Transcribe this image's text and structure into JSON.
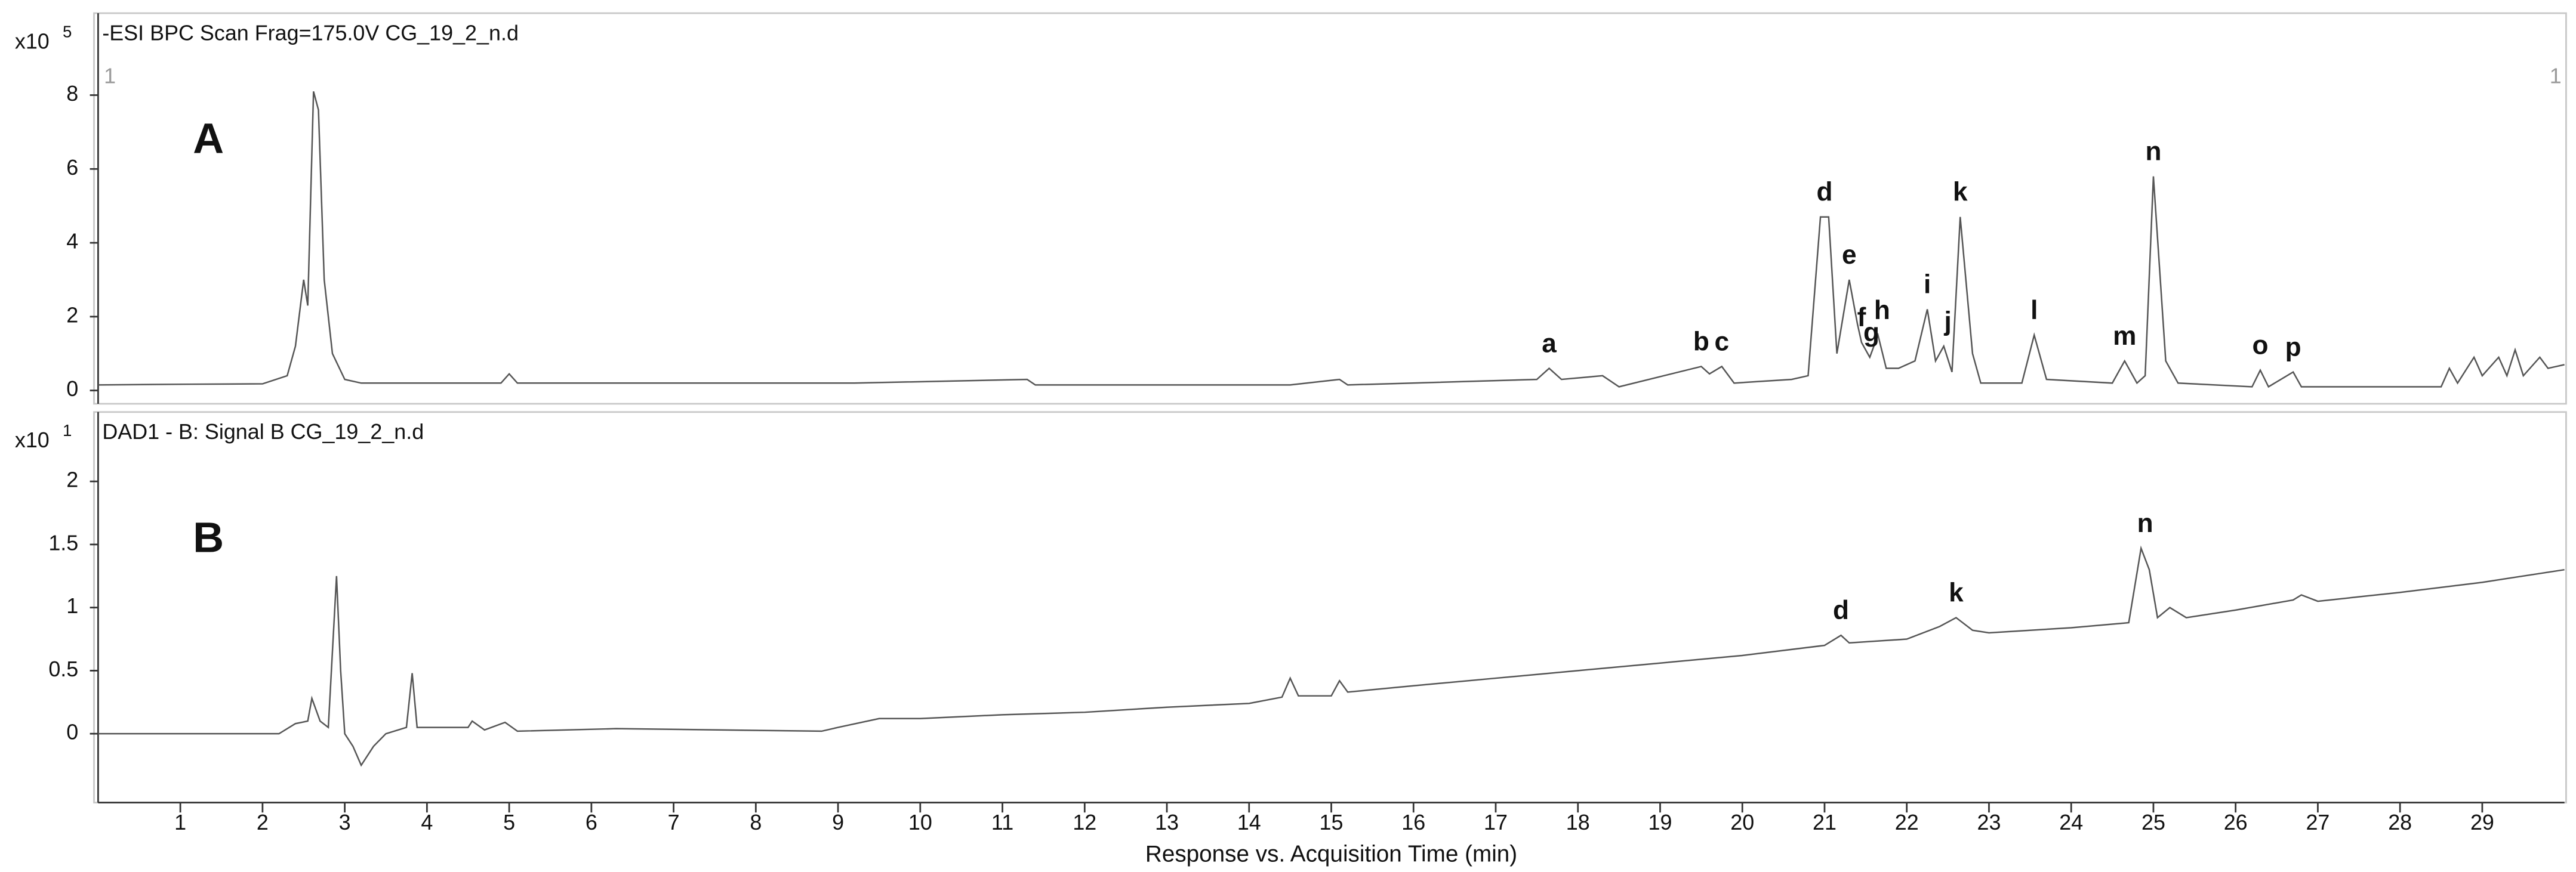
{
  "chart_data": [
    {
      "type": "line",
      "panel_letter": "A",
      "header": "-ESI BPC Scan Frag=175.0V CG_19_2_n.d",
      "y_multiplier": {
        "base": "x10",
        "exponent": "5"
      },
      "cursor_labels": [
        "1",
        "1"
      ],
      "xlim": [
        0,
        30
      ],
      "ylim": [
        -0.36,
        10.13
      ],
      "yticks": [
        0,
        2,
        4,
        6,
        8
      ],
      "color": "#555555",
      "x": [
        0,
        1.1,
        2.0,
        2.3,
        2.4,
        2.5,
        2.55,
        2.62,
        2.68,
        2.75,
        2.85,
        3.0,
        3.2,
        4.9,
        5.0,
        5.1,
        9.2,
        11.3,
        11.4,
        14.5,
        15.1,
        15.2,
        17.5,
        17.65,
        17.8,
        18.3,
        18.5,
        19.5,
        19.6,
        19.75,
        19.9,
        20.6,
        20.8,
        20.95,
        21.05,
        21.15,
        21.3,
        21.4,
        21.45,
        21.55,
        21.65,
        21.75,
        21.9,
        22.1,
        22.25,
        22.35,
        22.45,
        22.55,
        22.65,
        22.8,
        22.9,
        23.4,
        23.55,
        23.7,
        24.5,
        24.65,
        24.8,
        24.9,
        25.0,
        25.15,
        25.3,
        26.2,
        26.3,
        26.4,
        26.7,
        26.8,
        28.5,
        28.6,
        28.7,
        28.9,
        29.0,
        29.2,
        29.3,
        29.4,
        29.5,
        29.7,
        29.8,
        30.0
      ],
      "values": [
        0.15,
        0.17,
        0.18,
        0.4,
        1.2,
        3.0,
        2.3,
        8.1,
        7.6,
        3.0,
        1.0,
        0.3,
        0.2,
        0.2,
        0.45,
        0.2,
        0.2,
        0.3,
        0.15,
        0.15,
        0.3,
        0.15,
        0.3,
        0.6,
        0.3,
        0.4,
        0.1,
        0.65,
        0.45,
        0.65,
        0.2,
        0.3,
        0.4,
        4.7,
        4.7,
        1.0,
        3.0,
        1.8,
        1.3,
        0.9,
        1.5,
        0.6,
        0.6,
        0.8,
        2.2,
        0.8,
        1.2,
        0.5,
        4.7,
        1.0,
        0.2,
        0.2,
        1.5,
        0.3,
        0.2,
        0.8,
        0.2,
        0.4,
        5.8,
        0.8,
        0.2,
        0.1,
        0.55,
        0.1,
        0.5,
        0.1,
        0.1,
        0.6,
        0.2,
        0.9,
        0.4,
        0.9,
        0.4,
        1.1,
        0.4,
        0.9,
        0.6,
        0.7
      ],
      "annotations": [
        {
          "text": "a",
          "x": 17.65,
          "y": 0.6
        },
        {
          "text": "b",
          "x": 19.5,
          "y": 0.65
        },
        {
          "text": "c",
          "x": 19.75,
          "y": 0.65
        },
        {
          "text": "d",
          "x": 21.0,
          "y": 4.7
        },
        {
          "text": "e",
          "x": 21.3,
          "y": 3.0
        },
        {
          "text": "f",
          "x": 21.45,
          "y": 1.3
        },
        {
          "text": "g",
          "x": 21.57,
          "y": 0.9
        },
        {
          "text": "h",
          "x": 21.7,
          "y": 1.5
        },
        {
          "text": "i",
          "x": 22.25,
          "y": 2.2
        },
        {
          "text": "j",
          "x": 22.5,
          "y": 1.2
        },
        {
          "text": "k",
          "x": 22.65,
          "y": 4.7
        },
        {
          "text": "l",
          "x": 23.55,
          "y": 1.5
        },
        {
          "text": "m",
          "x": 24.65,
          "y": 0.8
        },
        {
          "text": "n",
          "x": 25.0,
          "y": 5.8
        },
        {
          "text": "o",
          "x": 26.3,
          "y": 0.55
        },
        {
          "text": "p",
          "x": 26.7,
          "y": 0.5
        }
      ]
    },
    {
      "type": "line",
      "panel_letter": "B",
      "header": "DAD1 - B: Signal B CG_19_2_n.d",
      "y_multiplier": {
        "base": "x10",
        "exponent": "1"
      },
      "xlim": [
        0,
        30
      ],
      "xticks": [
        1,
        2,
        3,
        4,
        5,
        6,
        7,
        8,
        9,
        10,
        11,
        12,
        13,
        14,
        15,
        16,
        17,
        18,
        19,
        20,
        21,
        22,
        23,
        24,
        25,
        26,
        27,
        28,
        29
      ],
      "xlabel": "Response vs. Acquisition Time (min)",
      "ylim": [
        -0.52,
        2.55
      ],
      "yticks": [
        0,
        0.5,
        1,
        1.5,
        2
      ],
      "color": "#555555",
      "x": [
        0,
        2.2,
        2.4,
        2.55,
        2.6,
        2.7,
        2.8,
        2.9,
        2.95,
        3.0,
        3.1,
        3.2,
        3.35,
        3.5,
        3.75,
        3.82,
        3.88,
        4.5,
        4.55,
        4.7,
        4.95,
        5.1,
        6.3,
        8.8,
        9.0,
        9.5,
        10,
        11,
        12,
        13,
        14,
        14.4,
        14.5,
        14.6,
        15.0,
        15.1,
        15.2,
        16,
        17,
        18,
        19,
        20,
        21,
        21.2,
        21.3,
        22,
        22.4,
        22.6,
        22.8,
        23,
        24,
        24.7,
        24.85,
        24.95,
        25.05,
        25.2,
        25.4,
        26,
        26.7,
        26.8,
        27,
        28,
        29,
        30
      ],
      "values": [
        0,
        0,
        0.08,
        0.1,
        0.28,
        0.1,
        0.05,
        1.25,
        0.5,
        0.0,
        -0.1,
        -0.25,
        -0.1,
        0.0,
        0.05,
        0.48,
        0.05,
        0.05,
        0.1,
        0.03,
        0.09,
        0.02,
        0.04,
        0.02,
        0.05,
        0.12,
        0.12,
        0.15,
        0.17,
        0.21,
        0.24,
        0.29,
        0.44,
        0.3,
        0.3,
        0.42,
        0.33,
        0.38,
        0.44,
        0.5,
        0.56,
        0.62,
        0.7,
        0.78,
        0.72,
        0.75,
        0.85,
        0.92,
        0.82,
        0.8,
        0.84,
        0.88,
        1.47,
        1.3,
        0.92,
        1.0,
        0.92,
        0.98,
        1.06,
        1.1,
        1.05,
        1.12,
        1.2,
        1.3
      ],
      "annotations": [
        {
          "text": "d",
          "x": 21.2,
          "y": 0.78
        },
        {
          "text": "k",
          "x": 22.6,
          "y": 0.92
        },
        {
          "text": "n",
          "x": 24.9,
          "y": 1.47
        }
      ]
    }
  ]
}
